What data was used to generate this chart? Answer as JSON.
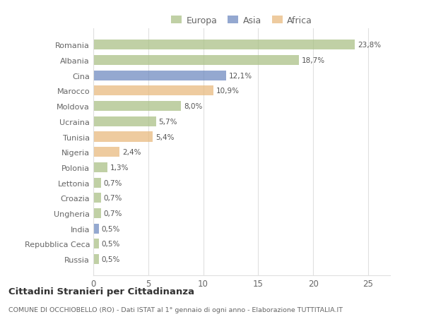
{
  "categories": [
    "Romania",
    "Albania",
    "Cina",
    "Marocco",
    "Moldova",
    "Ucraina",
    "Tunisia",
    "Nigeria",
    "Polonia",
    "Lettonia",
    "Croazia",
    "Ungheria",
    "India",
    "Repubblica Ceca",
    "Russia"
  ],
  "values": [
    23.8,
    18.7,
    12.1,
    10.9,
    8.0,
    5.7,
    5.4,
    2.4,
    1.3,
    0.7,
    0.7,
    0.7,
    0.5,
    0.5,
    0.5
  ],
  "labels": [
    "23,8%",
    "18,7%",
    "12,1%",
    "10,9%",
    "8,0%",
    "5,7%",
    "5,4%",
    "2,4%",
    "1,3%",
    "0,7%",
    "0,7%",
    "0,7%",
    "0,5%",
    "0,5%",
    "0,5%"
  ],
  "colors": [
    "#a8bf82",
    "#a8bf82",
    "#6b87be",
    "#e8b87a",
    "#a8bf82",
    "#a8bf82",
    "#e8b87a",
    "#e8b87a",
    "#a8bf82",
    "#a8bf82",
    "#a8bf82",
    "#a8bf82",
    "#6b87be",
    "#a8bf82",
    "#a8bf82"
  ],
  "legend_labels": [
    "Europa",
    "Asia",
    "Africa"
  ],
  "legend_colors": [
    "#a8bf82",
    "#6b87be",
    "#e8b87a"
  ],
  "title": "Cittadini Stranieri per Cittadinanza",
  "subtitle": "COMUNE DI OCCHIOBELLO (RO) - Dati ISTAT al 1° gennaio di ogni anno - Elaborazione TUTTITALIA.IT",
  "xlim": [
    0,
    27
  ],
  "xticks": [
    0,
    5,
    10,
    15,
    20,
    25
  ],
  "background_color": "#ffffff",
  "grid_color": "#e0e0e0",
  "bar_alpha": 0.72
}
